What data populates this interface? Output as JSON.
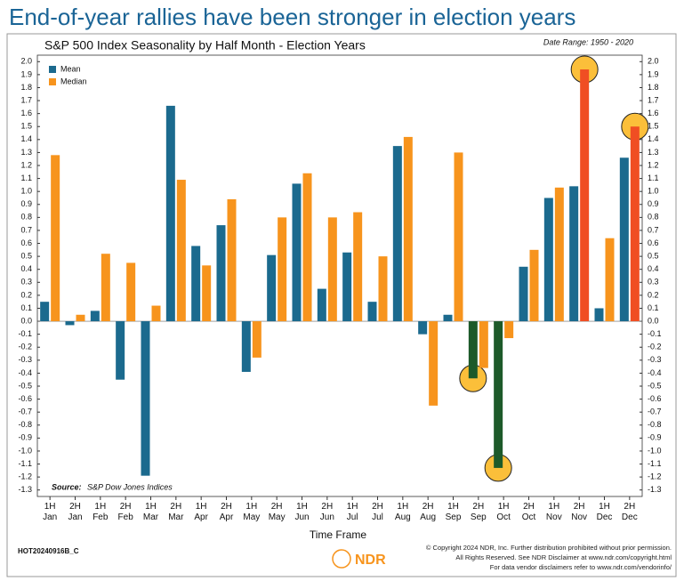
{
  "chart_data": {
    "type": "bar",
    "title": "End-of-year rallies have been stronger in election years",
    "subtitle": "S&P 500 Index Seasonality by Half Month - Election Years",
    "date_range": "Date Range: 1950 - 2020",
    "source_label": "Source:",
    "source": "S&P Dow Jones Indices",
    "x_label": "Time Frame",
    "categories": [
      "1H Jan",
      "2H Jan",
      "1H Feb",
      "2H Feb",
      "1H Mar",
      "2H Mar",
      "1H Apr",
      "2H Apr",
      "1H May",
      "2H May",
      "1H Jun",
      "2H Jun",
      "1H Jul",
      "2H Jul",
      "1H Aug",
      "2H Aug",
      "1H Sep",
      "2H Sep",
      "1H Oct",
      "2H Oct",
      "1H Nov",
      "2H Nov",
      "1H Dec",
      "2H Dec"
    ],
    "series": [
      {
        "name": "Mean",
        "color": "#1b6a8e",
        "highlight_color": "#1d5a2a",
        "values": [
          0.15,
          -0.03,
          0.08,
          -0.45,
          -1.19,
          1.66,
          0.58,
          0.74,
          -0.39,
          0.51,
          1.06,
          0.25,
          0.53,
          0.15,
          1.35,
          -0.1,
          0.05,
          -0.44,
          -1.13,
          0.42,
          0.95,
          1.04,
          0.1,
          1.26
        ]
      },
      {
        "name": "Median",
        "color": "#f7941d",
        "highlight_color": "#f04e23",
        "values": [
          1.28,
          0.05,
          0.52,
          0.45,
          0.12,
          1.09,
          0.43,
          0.94,
          -0.28,
          0.8,
          1.14,
          0.8,
          0.84,
          0.5,
          1.42,
          -0.65,
          1.3,
          -0.36,
          -0.13,
          0.55,
          1.03,
          1.94,
          0.64,
          1.5
        ]
      }
    ],
    "highlights": [
      {
        "series": 0,
        "index": 17
      },
      {
        "series": 0,
        "index": 18
      },
      {
        "series": 1,
        "index": 21
      },
      {
        "series": 1,
        "index": 23
      }
    ],
    "ylim": [
      -1.35,
      2.05
    ],
    "yticks": [
      -1.3,
      -1.2,
      -1.1,
      {
        "value": -1.0,
        "label": "-1.0"
      },
      -0.9,
      -0.8,
      -0.7,
      -0.6,
      -0.5,
      -0.4,
      -0.3,
      -0.2,
      -0.1,
      {
        "value": 0,
        "label": "0.0"
      },
      0.1,
      0.2,
      0.3,
      0.4,
      0.5,
      0.6,
      0.7,
      0.8,
      0.9,
      {
        "value": 1,
        "label": "1.0"
      },
      1.1,
      1.2,
      1.3,
      1.4,
      1.5,
      1.6,
      1.7,
      1.8,
      1.9,
      {
        "value": 2,
        "label": "2.0"
      }
    ],
    "grid": false,
    "legend_position": "upper left"
  },
  "footer": {
    "code": "HOT20240916B_C",
    "logo": "NDR",
    "lines": [
      "© Copyright 2024 NDR, Inc. Further distribution prohibited without prior permission.",
      "All Rights Reserved. See NDR Disclaimer at www.ndr.com/copyright.html",
      "For data vendor disclaimers refer to www.ndr.com/vendorinfo/"
    ]
  }
}
